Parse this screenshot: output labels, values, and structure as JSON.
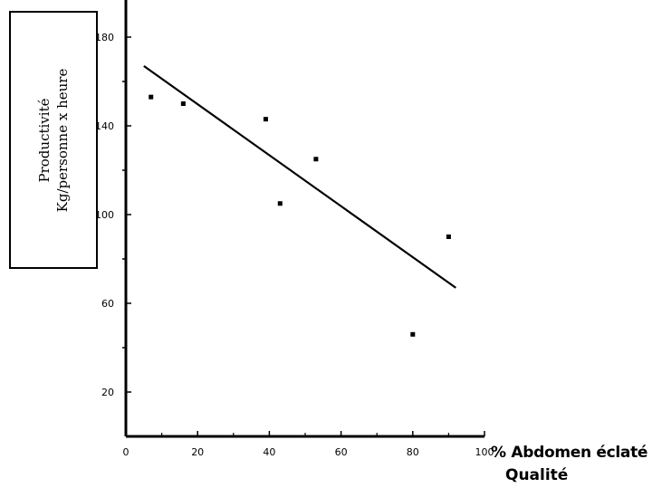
{
  "chart_data": {
    "type": "scatter",
    "ylabel_lines": [
      "Productivité",
      "Kg/personne x heure"
    ],
    "xlabel": "% Abdomen éclaté",
    "xlabel_sub": "Qualité",
    "xlim": [
      0,
      100
    ],
    "ylim": [
      0,
      200
    ],
    "x_ticks": [
      0,
      20,
      40,
      60,
      80,
      100
    ],
    "y_ticks": [
      20,
      60,
      100,
      140,
      180
    ],
    "grid": false,
    "legend": "none",
    "series": [
      {
        "points": [
          {
            "x": 7,
            "y": 153
          },
          {
            "x": 16,
            "y": 150
          },
          {
            "x": 39,
            "y": 143
          },
          {
            "x": 43,
            "y": 105
          },
          {
            "x": 53,
            "y": 125
          },
          {
            "x": 80,
            "y": 46
          },
          {
            "x": 90,
            "y": 90
          }
        ]
      }
    ],
    "trendline": {
      "x1": 5,
      "y1": 167,
      "x2": 92,
      "y2": 67
    }
  }
}
